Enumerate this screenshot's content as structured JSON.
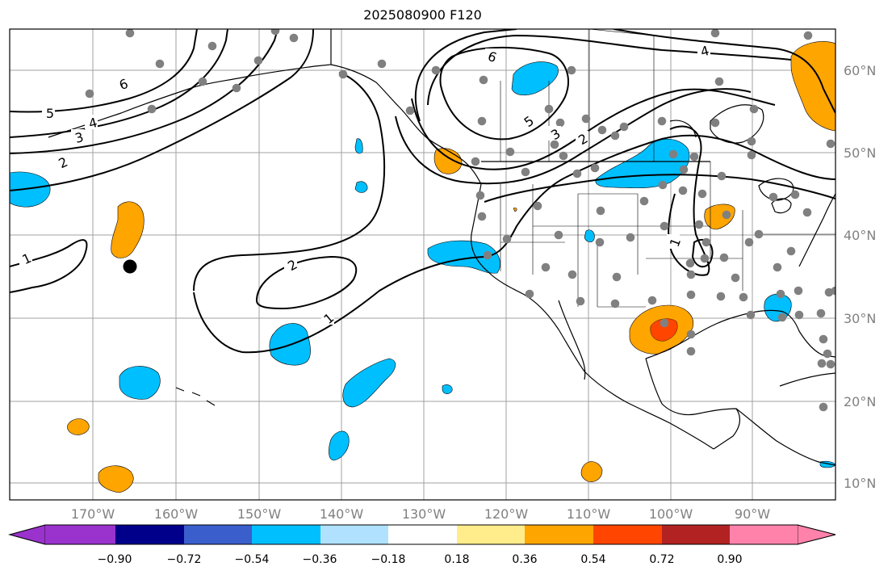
{
  "title": "2025080900 F120",
  "lat_labels": [
    "60°N",
    "50°N",
    "40°N",
    "30°N",
    "20°N",
    "10°N"
  ],
  "lon_labels": [
    "170°W",
    "160°W",
    "150°W",
    "140°W",
    "130°W",
    "120°W",
    "110°W",
    "100°W",
    "90°W"
  ],
  "colorbar": {
    "colors": [
      "#9a32cd",
      "#00008b",
      "#3a5fcd",
      "#00bfff",
      "#b0e2ff",
      "#ffffff",
      "#ffec8b",
      "#ffa500",
      "#ff4500",
      "#b22222",
      "#ff82ab"
    ],
    "tick_labels": [
      "−0.90",
      "−0.72",
      "−0.54",
      "−0.36",
      "−0.18",
      "0.18",
      "0.36",
      "0.54",
      "0.72",
      "0.90"
    ]
  },
  "contour_labels": [
    "6",
    "5",
    "4",
    "3",
    "2",
    "1",
    "2",
    "1",
    "6",
    "5",
    "3",
    "2",
    "4",
    "1"
  ],
  "colors": {
    "positive": "#ffa500",
    "strong_positive": "#ff4500",
    "negative": "#00bfff",
    "station": "#808080",
    "marker": "#000000"
  }
}
